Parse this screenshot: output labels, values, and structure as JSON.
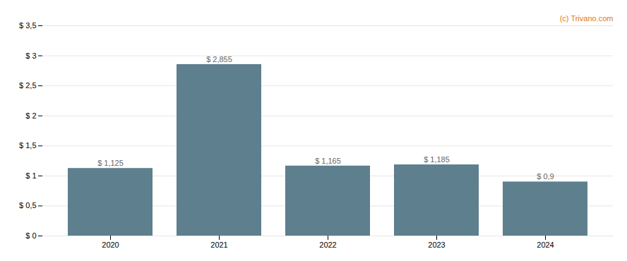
{
  "chart_data": {
    "type": "bar",
    "categories": [
      "2020",
      "2021",
      "2022",
      "2023",
      "2024"
    ],
    "values": [
      1.125,
      2.855,
      1.165,
      1.185,
      0.9
    ],
    "value_labels": [
      "$ 1,125",
      "$ 2,855",
      "$ 1,165",
      "$ 1,185",
      "$ 0,9"
    ],
    "data_labels": true,
    "color": "#5d7f8e",
    "ylim": [
      0,
      3.5
    ],
    "yticks": [
      {
        "value": 0,
        "label": "$ 0"
      },
      {
        "value": 0.5,
        "label": "$ 0,5"
      },
      {
        "value": 1.0,
        "label": "$ 1"
      },
      {
        "value": 1.5,
        "label": "$ 1,5"
      },
      {
        "value": 2.0,
        "label": "$ 2"
      },
      {
        "value": 2.5,
        "label": "$ 2,5"
      },
      {
        "value": 3.0,
        "label": "$ 3"
      },
      {
        "value": 3.5,
        "label": "$ 3,5"
      }
    ],
    "grid": true,
    "annotations": [
      {
        "text": "(c) Trivano.com",
        "color": "#e07820"
      }
    ]
  }
}
